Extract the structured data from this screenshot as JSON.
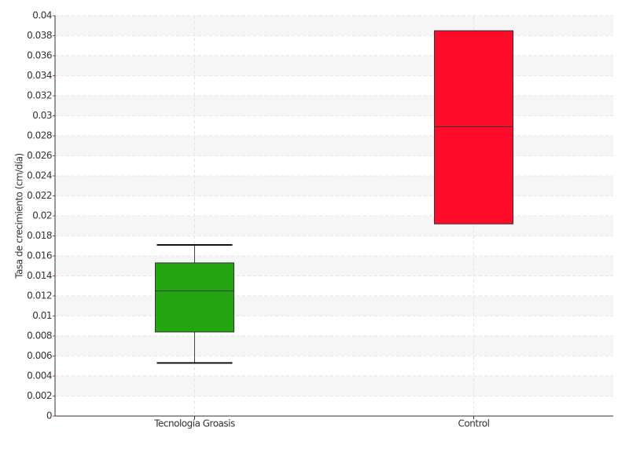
{
  "chart_data": {
    "type": "box",
    "y_label": "Tasa de crecimiento (cm/día)",
    "categories": [
      "Tecnología Groasis",
      "Control"
    ],
    "boxes": [
      {
        "low": 0.0053,
        "q1": 0.0084,
        "median": 0.0125,
        "q3": 0.0153,
        "high": 0.0171,
        "color": "#22a50f"
      },
      {
        "low": 0.0192,
        "q1": 0.0192,
        "median": 0.0289,
        "q3": 0.0385,
        "high": 0.0385,
        "color": "#ff0c2a"
      }
    ],
    "ylim": [
      0,
      0.04
    ],
    "yticks": [
      0,
      0.002,
      0.004,
      0.006,
      0.008,
      0.01,
      0.012,
      0.014,
      0.016,
      0.018,
      0.02,
      0.022,
      0.024,
      0.026,
      0.028,
      0.03,
      0.032,
      0.034,
      0.036,
      0.038,
      0.04
    ],
    "grid": true
  }
}
